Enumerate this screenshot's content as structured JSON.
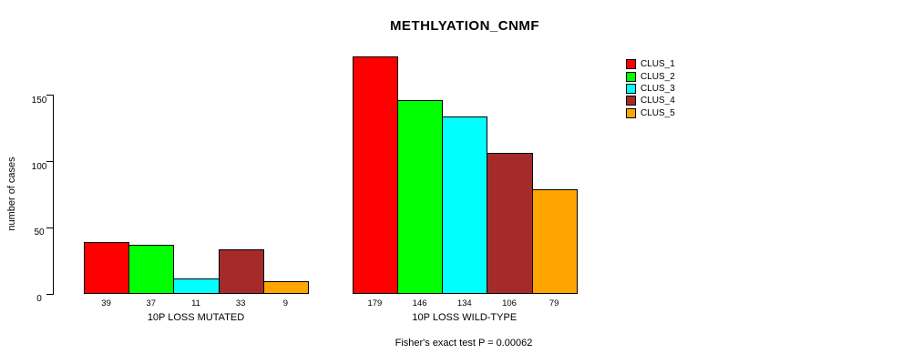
{
  "title": "METHLYATION_CNMF",
  "footer": "Fisher's exact test P = 0.00062",
  "chart_data": {
    "type": "bar",
    "title": "METHLYATION_CNMF",
    "xlabel": "",
    "ylabel": "number of cases",
    "ylim": [
      0,
      180
    ],
    "yticks": [
      0,
      50,
      100,
      150
    ],
    "grid": false,
    "legend_position": "right",
    "categories": [
      "CLUS_1",
      "CLUS_2",
      "CLUS_3",
      "CLUS_4",
      "CLUS_5"
    ],
    "series_colors": [
      "#FF0000",
      "#00FF00",
      "#00FFFF",
      "#A52A2A",
      "#FFA500"
    ],
    "groups": [
      {
        "label": "10P LOSS MUTATED",
        "values": [
          39,
          37,
          11,
          33,
          9
        ]
      },
      {
        "label": "10P LOSS WILD-TYPE",
        "values": [
          179,
          146,
          134,
          106,
          79
        ]
      }
    ],
    "legend": [
      {
        "label": "CLUS_1",
        "color": "#FF0000"
      },
      {
        "label": "CLUS_2",
        "color": "#00FF00"
      },
      {
        "label": "CLUS_3",
        "color": "#00FFFF"
      },
      {
        "label": "CLUS_4",
        "color": "#A52A2A"
      },
      {
        "label": "CLUS_5",
        "color": "#FFA500"
      }
    ],
    "annotation": "Fisher's exact test P = 0.00062"
  }
}
